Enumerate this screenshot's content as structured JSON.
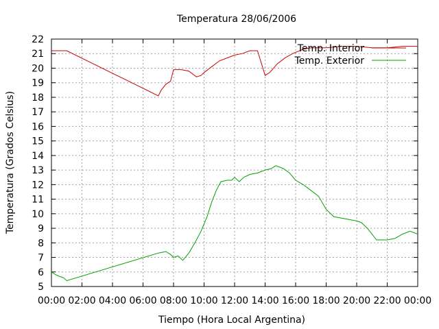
{
  "chart_data": {
    "type": "line",
    "title": "Temperatura 28/06/2006",
    "xlabel": "Tiempo (Hora Local Argentina)",
    "ylabel": "Temperatura (Grados Celsius)",
    "xlim": [
      0,
      24
    ],
    "ylim": [
      5,
      22
    ],
    "x_ticks": [
      "00:00",
      "02:00",
      "04:00",
      "06:00",
      "08:00",
      "10:00",
      "12:00",
      "14:00",
      "16:00",
      "18:00",
      "20:00",
      "22:00",
      "00:00"
    ],
    "y_ticks": [
      5,
      6,
      7,
      8,
      9,
      10,
      11,
      12,
      13,
      14,
      15,
      16,
      17,
      18,
      19,
      20,
      21,
      22
    ],
    "grid": true,
    "legend_position": "top-right",
    "series": [
      {
        "name": "Temp. Interior",
        "color": "#cc0000",
        "x": [
          0,
          1,
          7.0,
          7.2,
          7.5,
          7.8,
          8.0,
          8.2,
          8.5,
          9.0,
          9.5,
          9.8,
          10.0,
          10.5,
          11.0,
          11.5,
          12.0,
          12.5,
          13.0,
          13.5,
          14.0,
          14.3,
          14.8,
          15.3,
          15.8,
          16.5,
          17.0,
          18.0,
          19.0,
          20.0,
          21.0,
          22.0,
          23.0,
          24.0
        ],
        "y": [
          21.2,
          21.2,
          18.1,
          18.5,
          18.9,
          19.1,
          19.9,
          19.9,
          19.9,
          19.8,
          19.4,
          19.5,
          19.7,
          20.1,
          20.5,
          20.7,
          20.9,
          21.0,
          21.2,
          21.2,
          19.5,
          19.7,
          20.3,
          20.7,
          21.0,
          21.3,
          21.4,
          21.4,
          21.5,
          21.5,
          21.4,
          21.4,
          21.5,
          21.5
        ]
      },
      {
        "name": "Temp. Exterior",
        "color": "#00a000",
        "x": [
          0,
          0.3,
          0.5,
          0.8,
          1.0,
          7.0,
          7.5,
          7.8,
          8.0,
          8.3,
          8.6,
          9.0,
          9.4,
          9.8,
          10.2,
          10.5,
          10.8,
          11.1,
          11.5,
          11.8,
          12.0,
          12.3,
          12.6,
          13.0,
          13.5,
          14.0,
          14.4,
          14.7,
          15.2,
          15.6,
          16.0,
          16.5,
          17.0,
          17.5,
          18.0,
          18.5,
          19.0,
          19.5,
          20.0,
          20.3,
          20.7,
          21.0,
          21.3,
          21.7,
          22.0,
          22.5,
          23.0,
          23.5,
          24.0
        ],
        "y": [
          6.0,
          5.8,
          5.7,
          5.6,
          5.4,
          7.3,
          7.4,
          7.2,
          7.0,
          7.1,
          6.8,
          7.3,
          8.0,
          8.8,
          9.8,
          10.8,
          11.6,
          12.2,
          12.3,
          12.3,
          12.5,
          12.2,
          12.5,
          12.7,
          12.8,
          13.0,
          13.1,
          13.3,
          13.1,
          12.8,
          12.3,
          12.0,
          11.6,
          11.2,
          10.3,
          9.8,
          9.7,
          9.6,
          9.5,
          9.4,
          9.0,
          8.6,
          8.2,
          8.2,
          8.2,
          8.3,
          8.6,
          8.8,
          8.6
        ]
      }
    ]
  }
}
